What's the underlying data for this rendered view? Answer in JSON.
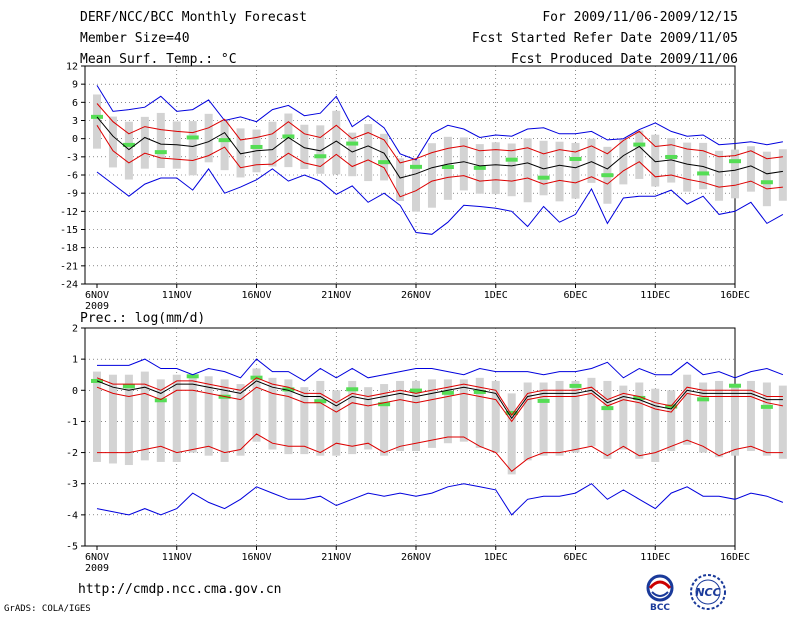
{
  "header": {
    "line1": "DERF/NCC/BCC Monthly Forecast",
    "line2": "Member Size=40",
    "line3": "Mean Surf. Temp.: °C",
    "right1": "For 2009/11/06-2009/12/15",
    "right2": "Fcst Started Refer Date 2009/11/05",
    "right3": "Fcst Produced Date 2009/11/06"
  },
  "footer": {
    "url": "http://cmdp.ncc.cma.gov.cn",
    "grads": "GrADS: COLA/IGES",
    "logo1": "BCC",
    "logo2": "NCC"
  },
  "colors": {
    "mean": "#000000",
    "spread": "#dd0000",
    "extreme": "#0000dd",
    "box": "#d3d3d3",
    "median": "#55dd55"
  },
  "chart_data": [
    {
      "type": "line",
      "title": "Mean Surf. Temp.: °C",
      "x_ticks": [
        "6NOV",
        "11NOV",
        "16NOV",
        "21NOV",
        "26NOV",
        "1DEC",
        "6DEC",
        "11DEC",
        "16DEC"
      ],
      "x_sub": "2009",
      "ylim": [
        -24,
        12
      ],
      "y_ticks": [
        12,
        9,
        6,
        3,
        0,
        -3,
        -6,
        -9,
        -12,
        -15,
        -18,
        -21,
        -24
      ],
      "series": [
        {
          "name": "mean",
          "values": [
            3.6,
            0.4,
            -1.8,
            0.2,
            -0.9,
            -1.0,
            -1.3,
            -0.5,
            1.0,
            -2.5,
            -2.0,
            -1.8,
            0.2,
            -1.5,
            -2.0,
            -0.4,
            -2.2,
            -1.2,
            -2.4,
            -6.5,
            -5.8,
            -4.8,
            -4.2,
            -3.8,
            -4.5,
            -4.3,
            -4.5,
            -4.0,
            -5.0,
            -4.4,
            -4.8,
            -3.8,
            -5.0,
            -2.8,
            -1.3,
            -3.8,
            -3.5,
            -4.2,
            -4.6,
            -5.5,
            -5.2,
            -4.5,
            -5.8,
            -5.4
          ]
        },
        {
          "name": "upper",
          "values": [
            5.8,
            2.8,
            0.8,
            2.0,
            1.5,
            1.2,
            1.0,
            1.8,
            3.2,
            -0.2,
            0.2,
            0.8,
            2.8,
            0.8,
            0.2,
            2.2,
            0.0,
            1.0,
            -0.2,
            -4.0,
            -3.3,
            -2.3,
            -1.6,
            -1.2,
            -2.0,
            -1.8,
            -2.0,
            -1.5,
            -2.5,
            -1.8,
            -2.2,
            -1.2,
            -2.5,
            -0.3,
            1.2,
            -1.3,
            -1.0,
            -1.7,
            -2.0,
            -3.0,
            -2.8,
            -2.0,
            -3.3,
            -3.0
          ]
        },
        {
          "name": "lower",
          "values": [
            2.2,
            -2.0,
            -4.0,
            -2.4,
            -3.2,
            -3.4,
            -3.6,
            -2.8,
            -1.4,
            -4.8,
            -4.3,
            -4.2,
            -2.4,
            -4.0,
            -4.6,
            -2.6,
            -4.6,
            -3.5,
            -4.8,
            -9.6,
            -8.6,
            -7.0,
            -6.4,
            -6.1,
            -7.0,
            -6.8,
            -7.0,
            -6.5,
            -7.5,
            -6.9,
            -7.3,
            -6.3,
            -7.5,
            -5.3,
            -3.8,
            -6.3,
            -6.0,
            -6.7,
            -7.2,
            -8.0,
            -7.7,
            -7.0,
            -8.3,
            -8.0
          ]
        },
        {
          "name": "max",
          "values": [
            8.8,
            4.5,
            4.8,
            5.2,
            7.0,
            4.5,
            4.8,
            6.4,
            3.0,
            3.6,
            2.8,
            4.8,
            5.5,
            3.8,
            4.2,
            7.0,
            2.0,
            3.8,
            1.8,
            -2.5,
            -3.5,
            0.8,
            2.2,
            1.6,
            0.2,
            0.6,
            0.4,
            1.6,
            1.8,
            0.8,
            0.8,
            1.2,
            -0.2,
            0.0,
            1.5,
            2.6,
            1.2,
            0.4,
            0.6,
            -1.0,
            -0.8,
            -0.5,
            -1.0,
            -0.5
          ]
        },
        {
          "name": "min",
          "values": [
            -5.5,
            -7.5,
            -9.5,
            -7.5,
            -6.5,
            -6.5,
            -8.5,
            -5.0,
            -9.0,
            -8.0,
            -6.8,
            -5.0,
            -7.0,
            -6.0,
            -7.0,
            -9.2,
            -7.8,
            -10.5,
            -9.0,
            -11.0,
            -15.5,
            -15.8,
            -13.8,
            -11.0,
            -11.2,
            -11.5,
            -12.0,
            -14.5,
            -11.2,
            -13.8,
            -12.5,
            -8.3,
            -14.0,
            -9.8,
            -9.5,
            -9.5,
            -8.5,
            -10.8,
            -9.5,
            -12.5,
            -12.0,
            -10.5,
            -14.0,
            -12.5
          ]
        }
      ]
    },
    {
      "type": "line",
      "title": "Prec.: log(mm/d)",
      "x_ticks": [
        "6NOV",
        "11NOV",
        "16NOV",
        "21NOV",
        "26NOV",
        "1DEC",
        "6DEC",
        "11DEC",
        "16DEC"
      ],
      "x_sub": "2009",
      "ylim": [
        -5,
        2
      ],
      "y_ticks": [
        2,
        1,
        0,
        -1,
        -2,
        -3,
        -4,
        -5
      ],
      "series": [
        {
          "name": "mean",
          "values": [
            0.3,
            0.1,
            0.0,
            0.1,
            -0.1,
            0.2,
            0.2,
            0.1,
            0.0,
            -0.1,
            0.3,
            0.1,
            0.0,
            -0.2,
            -0.2,
            -0.5,
            -0.2,
            -0.3,
            -0.2,
            -0.1,
            -0.2,
            -0.1,
            0.0,
            0.1,
            0.0,
            -0.1,
            -0.9,
            -0.2,
            -0.1,
            -0.1,
            -0.1,
            0.0,
            -0.4,
            -0.2,
            -0.3,
            -0.5,
            -0.6,
            0.0,
            -0.1,
            -0.1,
            -0.1,
            -0.1,
            -0.3,
            -0.3
          ]
        },
        {
          "name": "upper",
          "values": [
            0.4,
            0.2,
            0.2,
            0.2,
            0.0,
            0.3,
            0.3,
            0.2,
            0.1,
            0.0,
            0.4,
            0.2,
            0.1,
            -0.1,
            -0.1,
            -0.4,
            -0.1,
            -0.2,
            -0.1,
            0.0,
            -0.1,
            0.0,
            0.1,
            0.2,
            0.1,
            0.0,
            -0.8,
            -0.1,
            0.0,
            0.0,
            0.0,
            0.1,
            -0.3,
            -0.1,
            -0.2,
            -0.4,
            -0.5,
            0.1,
            0.0,
            0.0,
            0.0,
            0.0,
            -0.2,
            -0.2
          ]
        },
        {
          "name": "lower",
          "values": [
            0.1,
            -0.1,
            -0.2,
            -0.1,
            -0.3,
            0.0,
            0.0,
            -0.1,
            -0.2,
            -0.3,
            0.1,
            -0.1,
            -0.2,
            -0.4,
            -0.4,
            -0.7,
            -0.4,
            -0.5,
            -0.4,
            -0.3,
            -0.4,
            -0.3,
            -0.2,
            -0.1,
            -0.2,
            -0.3,
            -1.0,
            -0.3,
            -0.2,
            -0.2,
            -0.2,
            -0.1,
            -0.5,
            -0.3,
            -0.4,
            -0.6,
            -0.7,
            -0.1,
            -0.2,
            -0.2,
            -0.2,
            -0.2,
            -0.4,
            -0.5
          ]
        },
        {
          "name": "red_low",
          "values": [
            -2.0,
            -2.0,
            -2.0,
            -1.9,
            -1.8,
            -2.0,
            -1.9,
            -1.8,
            -2.0,
            -1.9,
            -1.4,
            -1.7,
            -1.8,
            -1.8,
            -2.0,
            -1.7,
            -1.8,
            -1.7,
            -2.0,
            -1.8,
            -1.7,
            -1.6,
            -1.5,
            -1.5,
            -1.8,
            -2.0,
            -2.6,
            -2.2,
            -2.0,
            -2.0,
            -1.9,
            -1.8,
            -2.1,
            -1.8,
            -2.1,
            -2.0,
            -1.8,
            -1.6,
            -1.8,
            -2.1,
            -1.9,
            -1.8,
            -2.0,
            -2.0
          ]
        },
        {
          "name": "max",
          "values": [
            0.8,
            0.8,
            0.8,
            1.0,
            0.7,
            0.7,
            0.5,
            0.7,
            0.6,
            0.4,
            1.0,
            0.6,
            0.6,
            0.3,
            0.7,
            0.4,
            0.7,
            0.4,
            0.5,
            0.6,
            0.7,
            0.7,
            0.6,
            0.5,
            0.7,
            0.6,
            0.6,
            0.6,
            0.5,
            0.6,
            0.6,
            0.7,
            0.9,
            0.4,
            0.7,
            0.5,
            0.5,
            0.9,
            0.5,
            0.6,
            0.4,
            0.6,
            0.7,
            0.5
          ]
        },
        {
          "name": "min",
          "values": [
            -3.8,
            -3.9,
            -4.0,
            -3.8,
            -4.0,
            -3.8,
            -3.3,
            -3.6,
            -3.8,
            -3.5,
            -3.1,
            -3.3,
            -3.5,
            -3.5,
            -3.4,
            -3.7,
            -3.5,
            -3.3,
            -3.4,
            -3.3,
            -3.4,
            -3.3,
            -3.1,
            -3.0,
            -3.1,
            -3.2,
            -4.0,
            -3.5,
            -3.4,
            -3.4,
            -3.3,
            -3.0,
            -3.5,
            -3.2,
            -3.5,
            -3.8,
            -3.3,
            -3.1,
            -3.4,
            -3.4,
            -3.5,
            -3.3,
            -3.4,
            -3.6
          ]
        }
      ]
    }
  ]
}
